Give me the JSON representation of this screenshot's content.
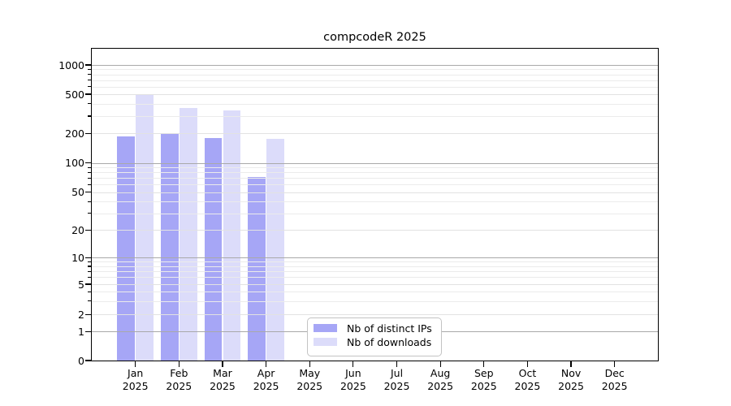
{
  "title": "compcodeR 2025",
  "chart_data": {
    "type": "bar",
    "title": "compcodeR 2025",
    "categories": [
      "Jan 2025",
      "Feb 2025",
      "Mar 2025",
      "Apr 2025",
      "May 2025",
      "Jun 2025",
      "Jul 2025",
      "Aug 2025",
      "Sep 2025",
      "Oct 2025",
      "Nov 2025",
      "Dec 2025"
    ],
    "series": [
      {
        "name": "Nb of distinct IPs",
        "color": "#a6a6f6",
        "values": [
          185,
          200,
          178,
          72,
          null,
          null,
          null,
          null,
          null,
          null,
          null,
          null
        ]
      },
      {
        "name": "Nb of downloads",
        "color": "#dcdcfa",
        "values": [
          490,
          360,
          340,
          175,
          null,
          null,
          null,
          null,
          null,
          null,
          null,
          null
        ]
      }
    ],
    "xlabel": "",
    "ylabel": "",
    "yscale": "log",
    "yticks": [
      0,
      1,
      2,
      5,
      10,
      20,
      50,
      100,
      200,
      500,
      1000
    ],
    "ylim": [
      0,
      1500
    ],
    "grid": true,
    "legend_position": "lower center"
  }
}
